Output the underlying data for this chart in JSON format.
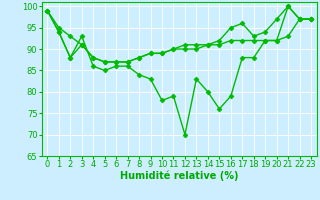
{
  "title": "",
  "xlabel": "Humidité relative (%)",
  "ylabel": "",
  "background_color": "#cceeff",
  "grid_color": "#aacccc",
  "line_color": "#00bb00",
  "xlim": [
    -0.5,
    23.5
  ],
  "ylim": [
    65,
    101
  ],
  "yticks": [
    65,
    70,
    75,
    80,
    85,
    90,
    95,
    100
  ],
  "xticks": [
    0,
    1,
    2,
    3,
    4,
    5,
    6,
    7,
    8,
    9,
    10,
    11,
    12,
    13,
    14,
    15,
    16,
    17,
    18,
    19,
    20,
    21,
    22,
    23
  ],
  "series": [
    [
      99,
      94,
      88,
      93,
      86,
      85,
      86,
      86,
      84,
      83,
      78,
      79,
      70,
      83,
      80,
      76,
      79,
      88,
      88,
      92,
      92,
      100,
      97,
      97
    ],
    [
      99,
      94,
      88,
      91,
      88,
      87,
      87,
      87,
      88,
      89,
      89,
      90,
      90,
      90,
      91,
      91,
      92,
      92,
      92,
      92,
      92,
      93,
      97,
      97
    ],
    [
      99,
      95,
      93,
      91,
      88,
      87,
      87,
      87,
      88,
      89,
      89,
      90,
      91,
      91,
      91,
      92,
      95,
      96,
      93,
      94,
      97,
      100,
      97,
      97
    ]
  ],
  "marker": "D",
  "markersize": 2.5,
  "linewidth": 1.0,
  "xlabel_fontsize": 7,
  "tick_fontsize": 6,
  "tick_color": "#00aa00",
  "label_color": "#00aa00"
}
